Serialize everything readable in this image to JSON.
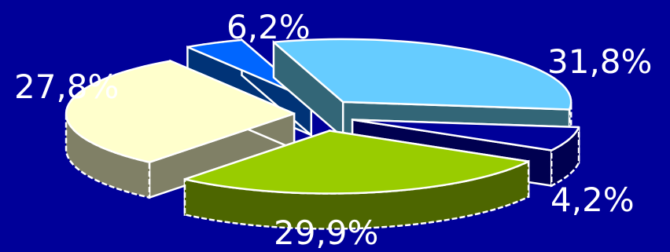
{
  "chart_data": {
    "type": "pie",
    "title": "",
    "style": "3d-exploded",
    "values": [
      31.8,
      4.2,
      29.9,
      27.8,
      6.2
    ],
    "labels": [
      "31,8%",
      "4,2%",
      "29,9%",
      "27,8%",
      "6,2%"
    ],
    "colors": {
      "top": [
        "#66ccff",
        "#0066ff",
        "#ffffcc",
        "#99cc00",
        "#000099"
      ],
      "side": [
        "#336677",
        "#003377",
        "#808066",
        "#4d6600",
        "#000050"
      ]
    },
    "edge_color": "#ffffff",
    "background": "#000099"
  }
}
